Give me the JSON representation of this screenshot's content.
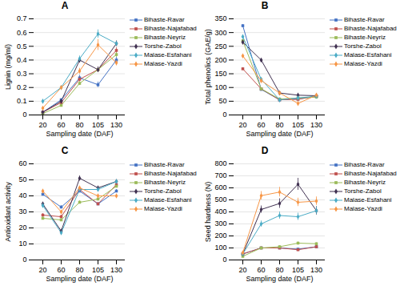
{
  "chart_data": [
    {
      "type": "line",
      "title": "A",
      "xlabel": "Sampling date (DAF)",
      "ylabel": "Lignin (mg/ml)",
      "categories": [
        "20",
        "60",
        "80",
        "105",
        "130"
      ],
      "ylim": [
        0,
        0.7
      ],
      "yticks": [
        0.0,
        0.1,
        0.2,
        0.3,
        0.4,
        0.5,
        0.6,
        0.7
      ],
      "grid": true,
      "legend": "right",
      "series": [
        {
          "name": "Bihaste-Ravar",
          "color": "#4472C4",
          "marker": "square",
          "values": [
            0.02,
            0.11,
            0.27,
            0.22,
            0.4
          ],
          "yerr": [
            0.005,
            0.01,
            0.02,
            0.02,
            0.02
          ]
        },
        {
          "name": "Bihaste-Najafabad",
          "color": "#C0504D",
          "marker": "square",
          "values": [
            0.02,
            0.09,
            0.26,
            0.33,
            0.47
          ],
          "yerr": [
            0.005,
            0.01,
            0.02,
            0.02,
            0.02
          ]
        },
        {
          "name": "Bihaste-Neyriz",
          "color": "#9BBB59",
          "marker": "square",
          "values": [
            0.01,
            0.07,
            0.23,
            0.33,
            0.44
          ],
          "yerr": [
            0.003,
            0.01,
            0.015,
            0.015,
            0.02
          ]
        },
        {
          "name": "Torshe-Zabol",
          "color": "#403151",
          "marker": "diamond",
          "values": [
            0.02,
            0.1,
            0.4,
            0.33,
            0.52
          ],
          "yerr": [
            0.005,
            0.01,
            0.02,
            0.02,
            0.02
          ]
        },
        {
          "name": "Malase-Esfahani",
          "color": "#4BACC6",
          "marker": "diamond",
          "values": [
            0.1,
            0.2,
            0.41,
            0.59,
            0.52
          ],
          "yerr": [
            0.005,
            0.01,
            0.02,
            0.03,
            0.015
          ]
        },
        {
          "name": "Malase-Yazdi",
          "color": "#F79646",
          "marker": "diamond",
          "values": [
            0.05,
            0.2,
            0.32,
            0.51,
            0.38
          ],
          "yerr": [
            0.005,
            0.01,
            0.02,
            0.04,
            0.02
          ]
        }
      ]
    },
    {
      "type": "line",
      "title": "B",
      "xlabel": "Sampling date (DAF)",
      "ylabel": "Total phenolics (GAE/g)",
      "categories": [
        "20",
        "60",
        "80",
        "105",
        "130"
      ],
      "ylim": [
        0,
        350
      ],
      "yticks": [
        0,
        50,
        100,
        150,
        200,
        250,
        300,
        350
      ],
      "grid": true,
      "legend": "right",
      "series": [
        {
          "name": "Bihaste-Ravar",
          "color": "#4472C4",
          "marker": "square",
          "values": [
            325,
            93,
            55,
            58,
            68
          ],
          "yerr": [
            4,
            3,
            2,
            2,
            2
          ]
        },
        {
          "name": "Bihaste-Najafabad",
          "color": "#C0504D",
          "marker": "square",
          "values": [
            168,
            95,
            55,
            57,
            68
          ],
          "yerr": [
            4,
            3,
            2,
            2,
            2
          ]
        },
        {
          "name": "Bihaste-Neyriz",
          "color": "#9BBB59",
          "marker": "square",
          "values": [
            270,
            95,
            58,
            62,
            65
          ],
          "yerr": [
            4,
            3,
            2,
            2,
            2
          ]
        },
        {
          "name": "Torshe-Zabol",
          "color": "#403151",
          "marker": "diamond",
          "values": [
            265,
            200,
            80,
            72,
            70
          ],
          "yerr": [
            4,
            5,
            3,
            3,
            2
          ]
        },
        {
          "name": "Malase-Esfahani",
          "color": "#4BACC6",
          "marker": "diamond",
          "values": [
            285,
            130,
            55,
            62,
            68
          ],
          "yerr": [
            4,
            4,
            2,
            2,
            2
          ]
        },
        {
          "name": "Malase-Yazdi",
          "color": "#F79646",
          "marker": "diamond",
          "values": [
            215,
            125,
            80,
            42,
            72
          ],
          "yerr": [
            4,
            4,
            3,
            2,
            2
          ]
        }
      ]
    },
    {
      "type": "line",
      "title": "C",
      "xlabel": "Sampling date (DAF)",
      "ylabel": "Antioxidant activity",
      "categories": [
        "20",
        "60",
        "80",
        "105",
        "130"
      ],
      "ylim": [
        0,
        60
      ],
      "yticks": [
        0,
        10,
        20,
        30,
        40,
        50,
        60
      ],
      "grid": true,
      "legend": "right",
      "series": [
        {
          "name": "Bihaste-Ravar",
          "color": "#4472C4",
          "marker": "square",
          "values": [
            41,
            33,
            43,
            35,
            43
          ],
          "yerr": [
            1,
            1,
            1,
            1,
            1
          ]
        },
        {
          "name": "Bihaste-Najafabad",
          "color": "#C0504D",
          "marker": "square",
          "values": [
            28,
            27,
            44,
            35,
            47
          ],
          "yerr": [
            1,
            1,
            1,
            1,
            1
          ]
        },
        {
          "name": "Bihaste-Neyriz",
          "color": "#9BBB59",
          "marker": "square",
          "values": [
            26,
            25,
            36,
            38,
            46
          ],
          "yerr": [
            1,
            1,
            1,
            1,
            1
          ]
        },
        {
          "name": "Torshe-Zabol",
          "color": "#403151",
          "marker": "diamond",
          "values": [
            35,
            18,
            51,
            45,
            49
          ],
          "yerr": [
            1,
            1,
            1.5,
            1,
            1
          ]
        },
        {
          "name": "Malase-Esfahani",
          "color": "#4BACC6",
          "marker": "diamond",
          "values": [
            34,
            17,
            44,
            44,
            49
          ],
          "yerr": [
            1,
            1,
            1,
            1,
            1
          ]
        },
        {
          "name": "Malase-Yazdi",
          "color": "#F79646",
          "marker": "diamond",
          "values": [
            43,
            30,
            45,
            40,
            40
          ],
          "yerr": [
            1,
            1,
            1,
            1,
            1
          ]
        }
      ]
    },
    {
      "type": "line",
      "title": "D",
      "xlabel": "Sampling date (DAF)",
      "ylabel": "Seed hardness (N)",
      "categories": [
        "20",
        "60",
        "80",
        "105",
        "130"
      ],
      "ylim": [
        0,
        800
      ],
      "yticks": [
        0,
        100,
        200,
        300,
        400,
        500,
        600,
        700,
        800
      ],
      "grid": true,
      "legend": "right",
      "series": [
        {
          "name": "Bihaste-Ravar",
          "color": "#4472C4",
          "marker": "square",
          "values": [
            50,
            100,
            100,
            90,
            110
          ],
          "yerr": [
            5,
            8,
            8,
            8,
            8
          ]
        },
        {
          "name": "Bihaste-Najafabad",
          "color": "#C0504D",
          "marker": "square",
          "values": [
            50,
            100,
            100,
            85,
            110
          ],
          "yerr": [
            5,
            8,
            8,
            8,
            8
          ]
        },
        {
          "name": "Bihaste-Neyriz",
          "color": "#9BBB59",
          "marker": "square",
          "values": [
            30,
            100,
            110,
            140,
            135
          ],
          "yerr": [
            3,
            8,
            8,
            10,
            8
          ]
        },
        {
          "name": "Torshe-Zabol",
          "color": "#403151",
          "marker": "diamond",
          "values": [
            50,
            420,
            470,
            630,
            410
          ],
          "yerr": [
            5,
            30,
            40,
            50,
            35
          ]
        },
        {
          "name": "Malase-Esfahani",
          "color": "#4BACC6",
          "marker": "diamond",
          "values": [
            50,
            300,
            370,
            360,
            410
          ],
          "yerr": [
            5,
            25,
            30,
            30,
            30
          ]
        },
        {
          "name": "Malase-Yazdi",
          "color": "#F79646",
          "marker": "diamond",
          "values": [
            60,
            535,
            565,
            480,
            490
          ],
          "yerr": [
            5,
            35,
            40,
            35,
            35
          ]
        }
      ]
    }
  ]
}
